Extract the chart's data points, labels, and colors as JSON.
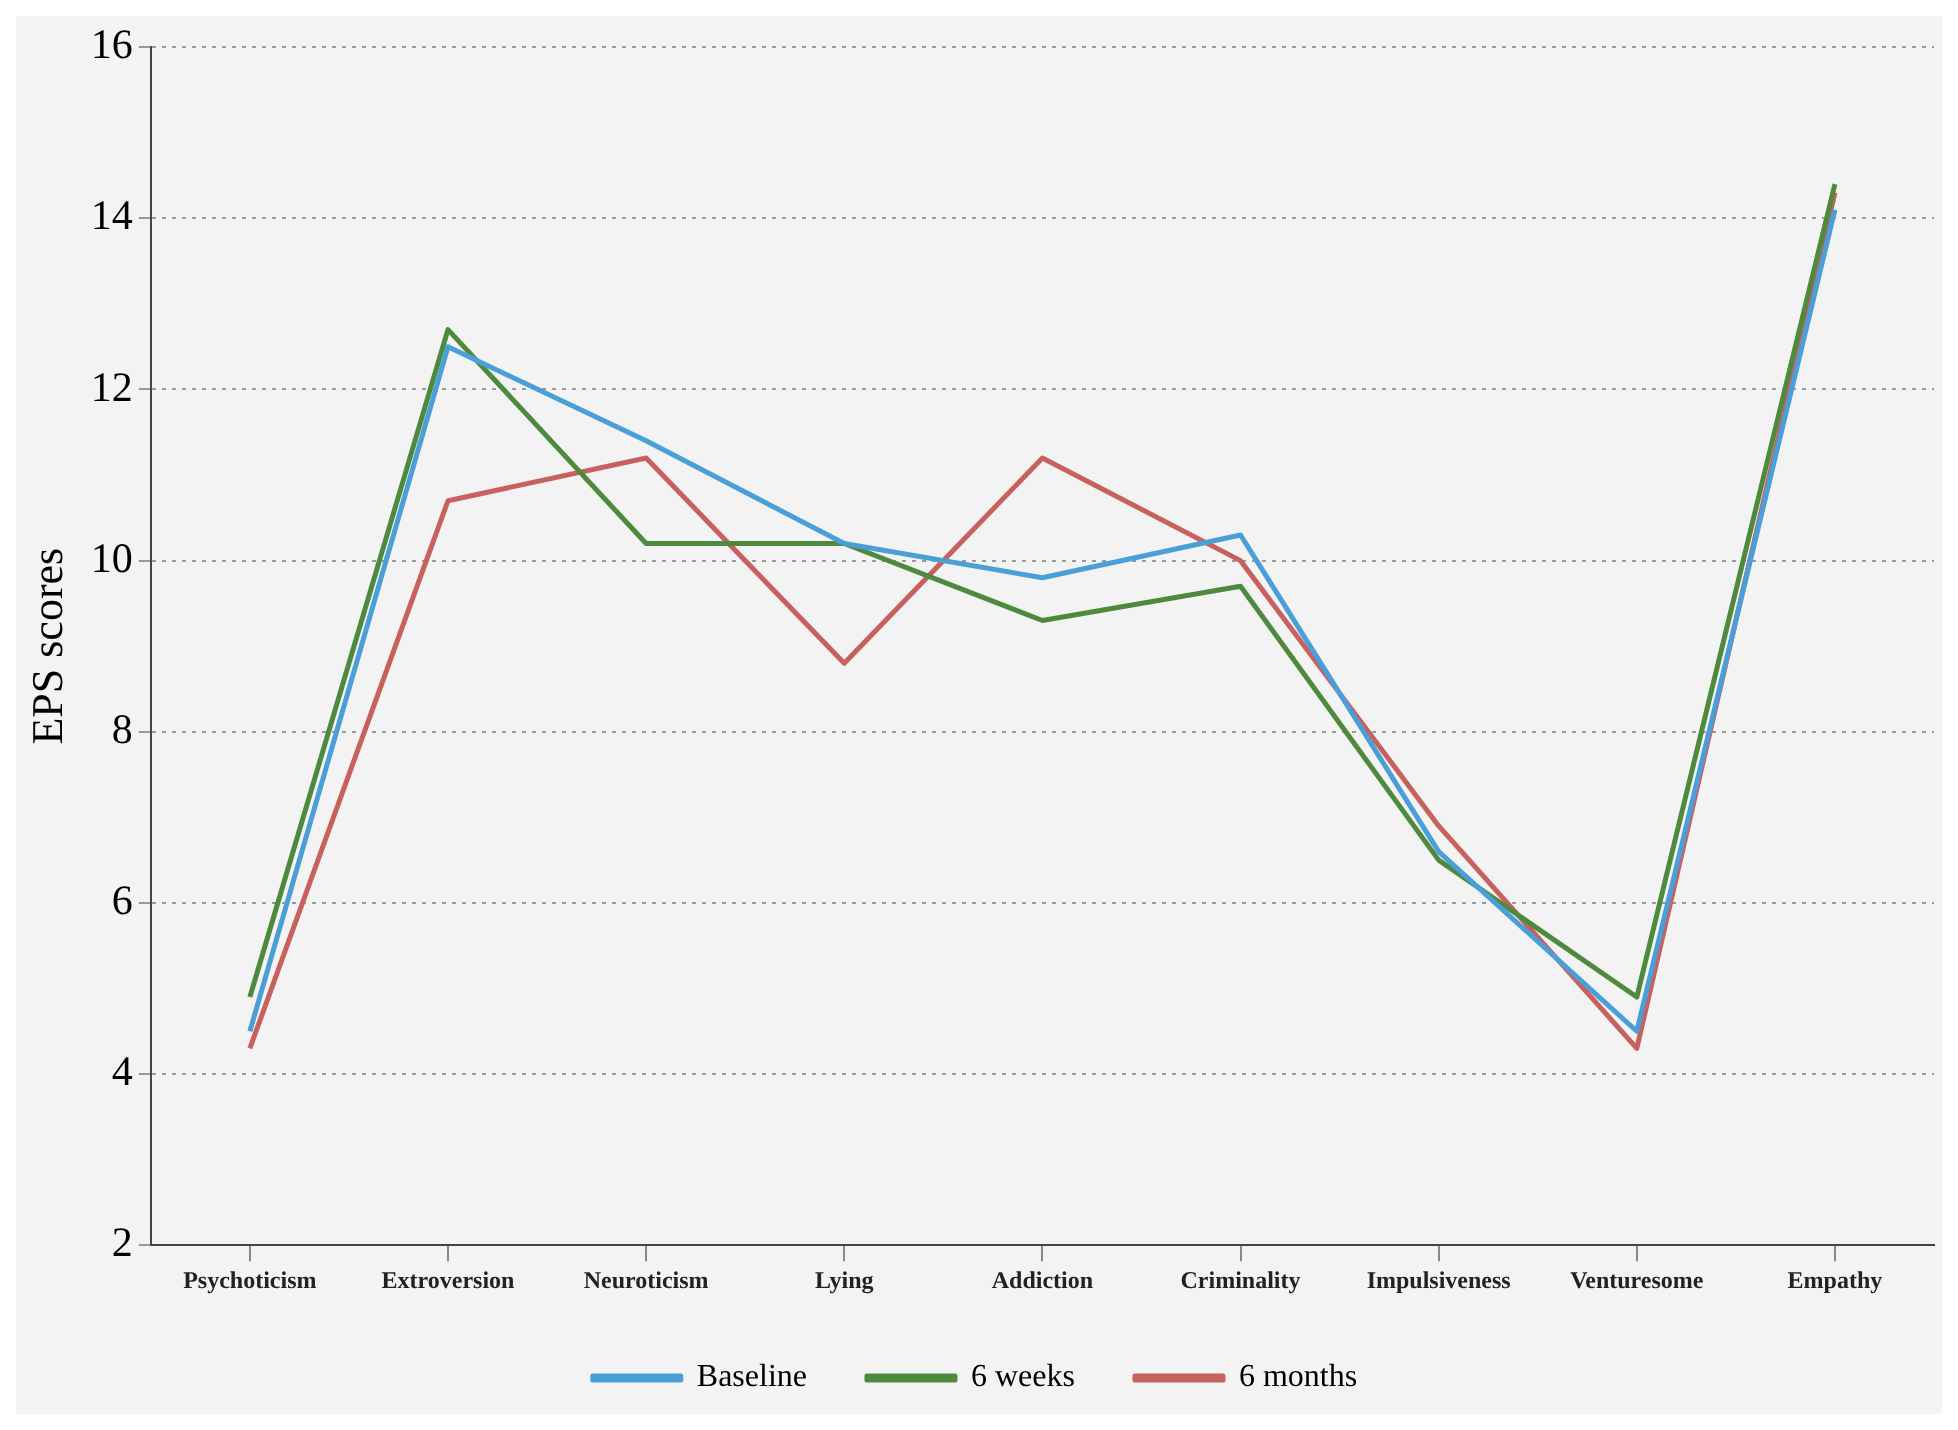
{
  "chart_data": {
    "type": "line",
    "ylabel": "EPS scores",
    "categories": [
      "Psychoticism",
      "Extroversion",
      "Neuroticism",
      "Lying",
      "Addiction",
      "Criminality",
      "Impulsiveness",
      "Venturesome",
      "Empathy"
    ],
    "series": [
      {
        "name": "Baseline",
        "color": "#4a9fd8",
        "values": [
          4.5,
          12.5,
          11.4,
          10.2,
          9.8,
          10.3,
          6.6,
          4.5,
          14.1
        ]
      },
      {
        "name": "6 weeks",
        "color": "#4e8a3e",
        "values": [
          4.9,
          12.7,
          10.2,
          10.2,
          9.3,
          9.7,
          6.5,
          4.9,
          14.4
        ]
      },
      {
        "name": "6 months",
        "color": "#c8605e",
        "values": [
          4.3,
          10.7,
          11.2,
          8.8,
          11.2,
          10.0,
          6.9,
          4.3,
          14.3
        ]
      }
    ],
    "ylim": [
      2,
      16
    ],
    "yticks": [
      2,
      4,
      6,
      8,
      10,
      12,
      14,
      16
    ],
    "grid": "y",
    "legend": "bottom",
    "marker": "none",
    "line_style": "solid"
  }
}
